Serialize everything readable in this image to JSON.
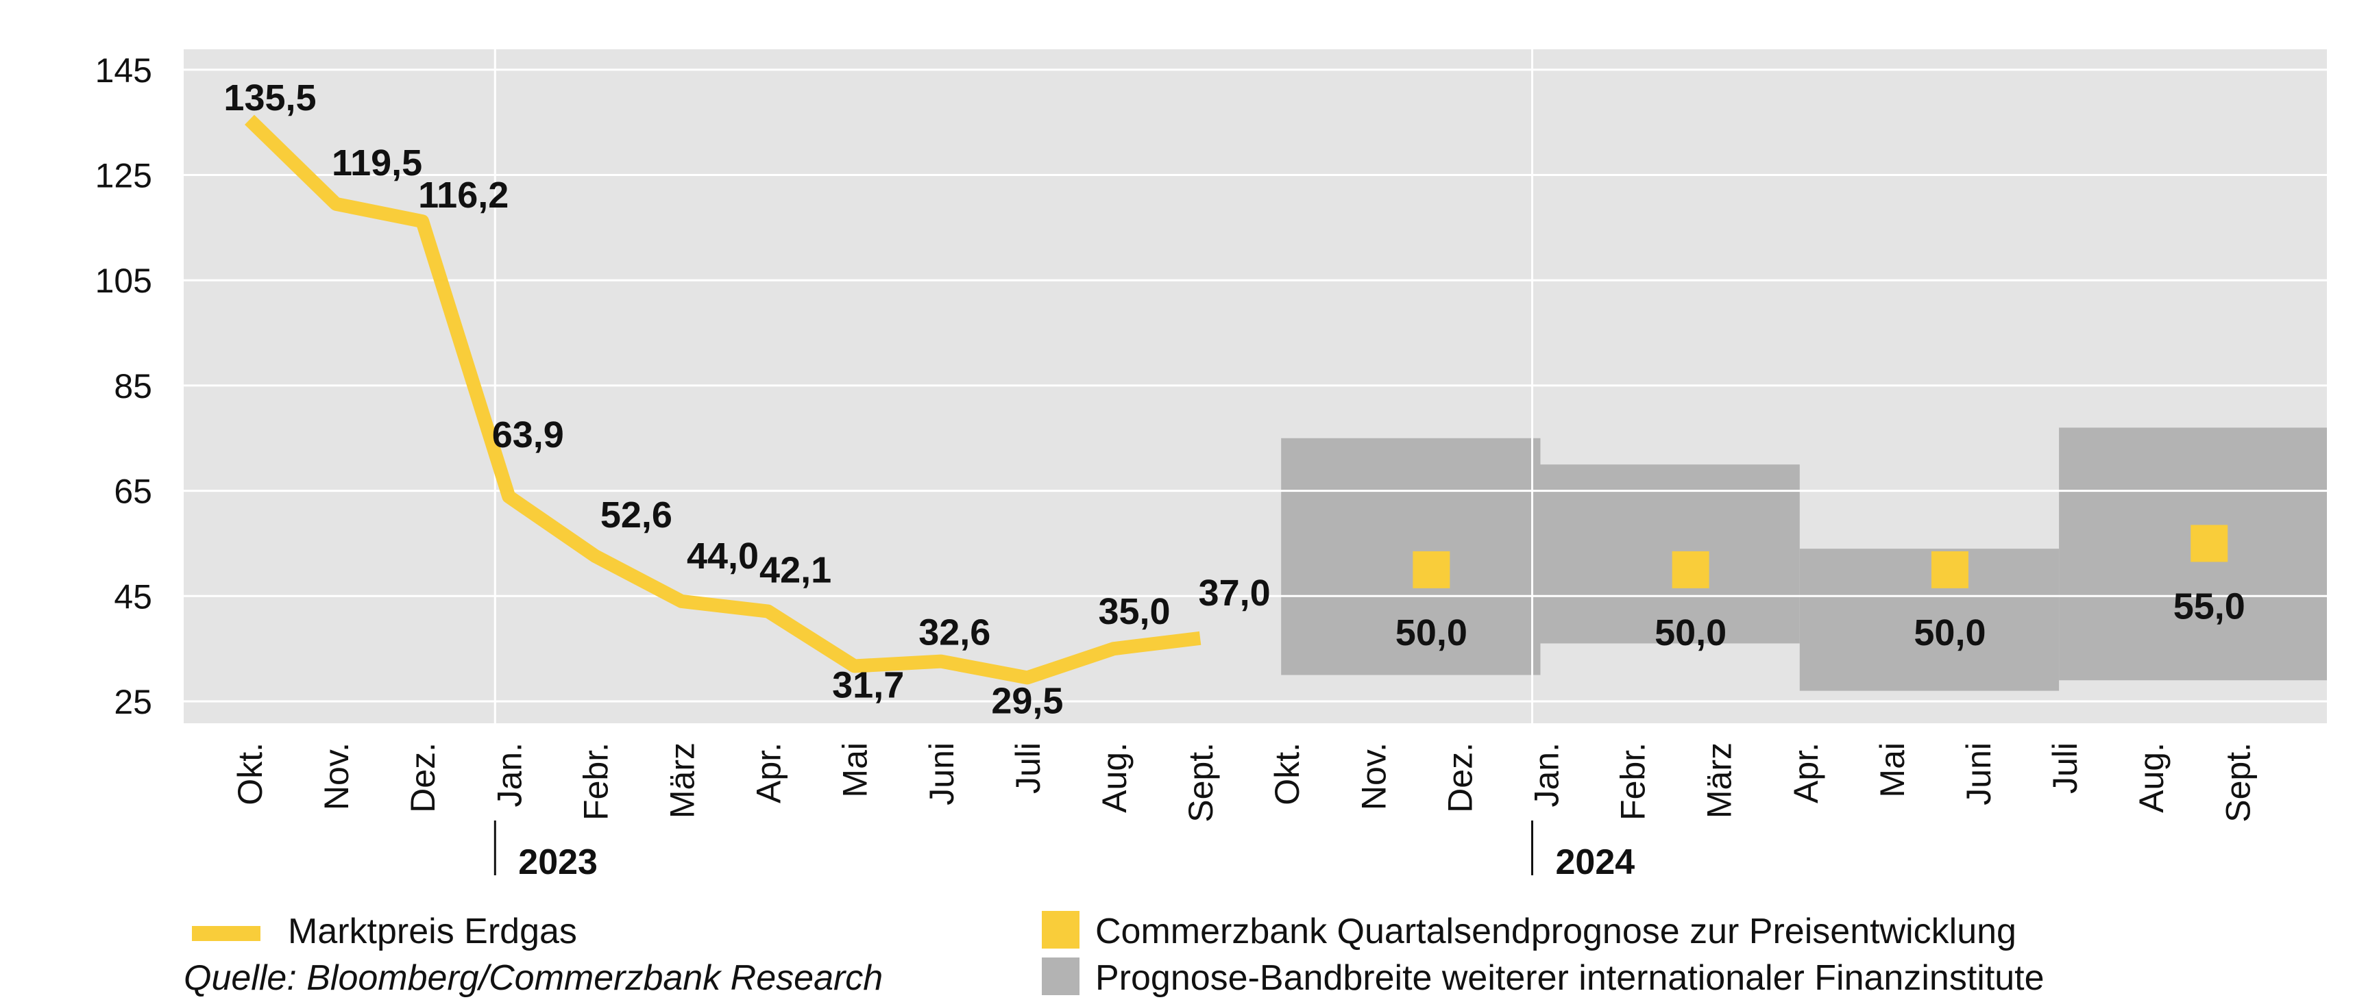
{
  "chart_data": {
    "type": "line",
    "title": "",
    "xlabel": "",
    "ylabel": "",
    "ylim": [
      22,
      150
    ],
    "yticks": [
      25,
      45,
      65,
      85,
      105,
      125,
      145
    ],
    "grid": true,
    "months": [
      "Okt.",
      "Nov.",
      "Dez.",
      "Jan.",
      "Febr.",
      "März",
      "Apr.",
      "Mai",
      "Juni",
      "Juli",
      "Aug.",
      "Sept.",
      "Okt.",
      "Nov.",
      "Dez.",
      "Jan.",
      "Febr.",
      "März",
      "Apr.",
      "Mai",
      "Juni",
      "Juli",
      "Aug.",
      "Sept."
    ],
    "years": [
      {
        "label": "2023",
        "month_index": 3
      },
      {
        "label": "2024",
        "month_index": 15
      }
    ],
    "series": [
      {
        "name": "Marktpreis Erdgas",
        "color": "#f9cd3a",
        "x_index": [
          0,
          1,
          2,
          3,
          4,
          5,
          6,
          7,
          8,
          9,
          10,
          11
        ],
        "values": [
          135.5,
          119.5,
          116.2,
          63.9,
          52.6,
          44.0,
          42.1,
          31.7,
          32.6,
          29.5,
          35.0,
          37.0
        ],
        "labels": [
          "135,5",
          "119,5",
          "116,2",
          "63,9",
          "52,6",
          "44,0",
          "42,1",
          "31,7",
          "32,6",
          "29,5",
          "35,0",
          "37,0"
        ]
      }
    ],
    "forecast_points": {
      "name": "Commerzbank Quartalsendprognose zur Preisentwicklung",
      "color": "#f9cd3a",
      "points": [
        {
          "x_index": 13.5,
          "value": 50.0,
          "label": "50,0"
        },
        {
          "x_index": 16.5,
          "value": 50.0,
          "label": "50,0"
        },
        {
          "x_index": 19.5,
          "value": 50.0,
          "label": "50,0"
        },
        {
          "x_index": 22.5,
          "value": 55.0,
          "label": "55,0"
        }
      ]
    },
    "forecast_bands": {
      "name": "Prognose-Bandbreite weiterer internationaler Finanzinstitute",
      "color": "#b3b3b3",
      "bands": [
        {
          "x_start": 12,
          "x_end": 15,
          "low": 30,
          "high": 75
        },
        {
          "x_start": 15,
          "x_end": 18,
          "low": 36,
          "high": 70
        },
        {
          "x_start": 18,
          "x_end": 21,
          "low": 27,
          "high": 54
        },
        {
          "x_start": 21,
          "x_end": 24.2,
          "low": 29,
          "high": 77
        }
      ]
    }
  },
  "colors": {
    "plot_background": "#e4e4e4",
    "gridline": "#ffffff",
    "line": "#f9cd3a",
    "band": "#b3b3b3"
  },
  "legend": {
    "line_label": "Marktpreis Erdgas",
    "forecast_label": "Commerzbank Quartalsendprognose zur Preisentwicklung",
    "band_label": "Prognose-Bandbreite weiterer internationaler Finanzinstitute",
    "source": "Quelle: Bloomberg/Commerzbank Research"
  }
}
